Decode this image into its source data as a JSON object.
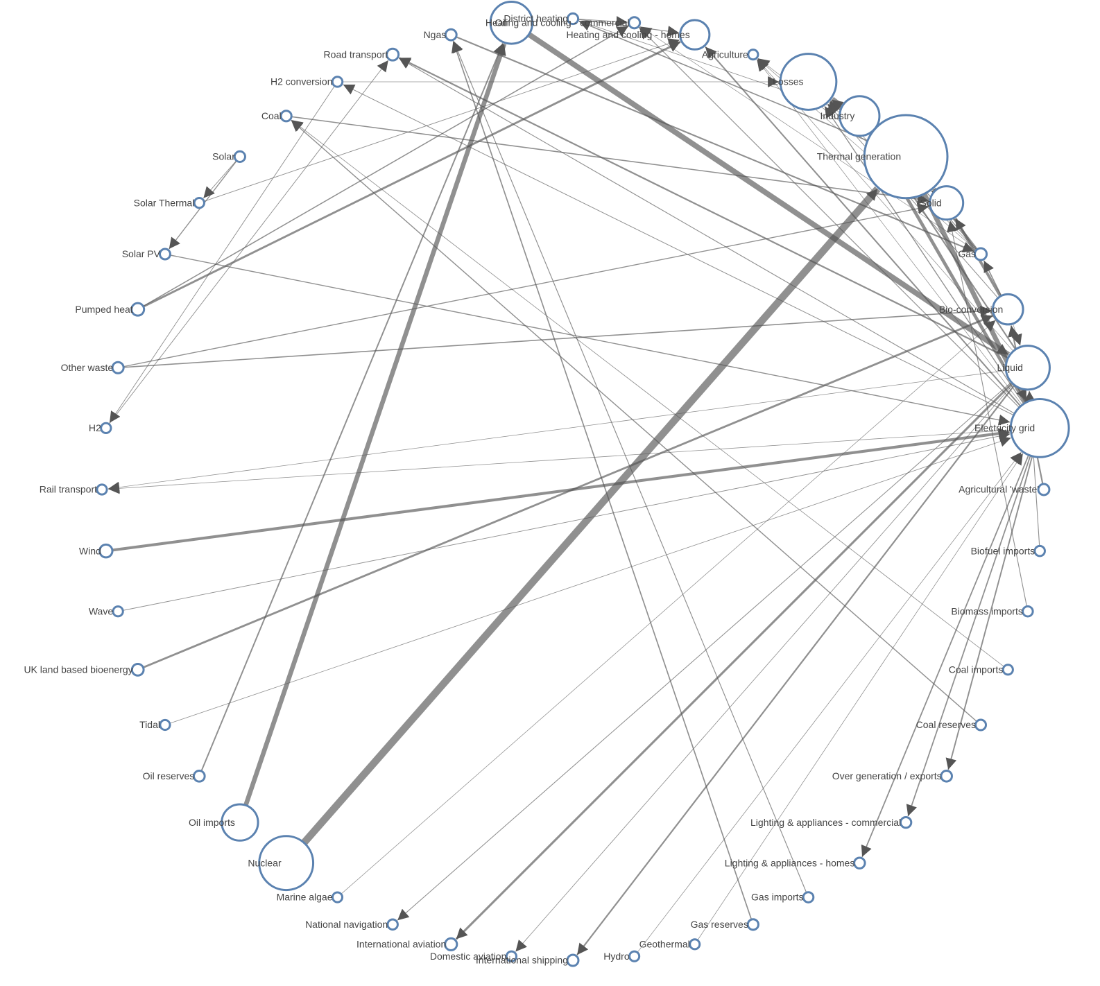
{
  "nodes": [
    {
      "label": "District heating"
    },
    {
      "label": "Heating and cooling - commercial"
    },
    {
      "label": "Heating and cooling - homes"
    },
    {
      "label": "Agriculture"
    },
    {
      "label": "Losses"
    },
    {
      "label": "Industry"
    },
    {
      "label": "Thermal generation"
    },
    {
      "label": "Solid"
    },
    {
      "label": "Gas"
    },
    {
      "label": "Bio-conversion"
    },
    {
      "label": "Liquid"
    },
    {
      "label": "Electricity grid"
    },
    {
      "label": "Agricultural 'waste'"
    },
    {
      "label": "Biofuel imports"
    },
    {
      "label": "Biomass imports"
    },
    {
      "label": "Coal imports"
    },
    {
      "label": "Coal reserves"
    },
    {
      "label": "Over generation / exports"
    },
    {
      "label": "Lighting & appliances - commercial"
    },
    {
      "label": "Lighting & appliances - homes"
    },
    {
      "label": "Gas imports"
    },
    {
      "label": "Gas reserves"
    },
    {
      "label": "Geothermal"
    },
    {
      "label": "Hydro"
    },
    {
      "label": "International shipping"
    },
    {
      "label": "Domestic aviation"
    },
    {
      "label": "International aviation"
    },
    {
      "label": "National navigation"
    },
    {
      "label": "Marine algae"
    },
    {
      "label": "Nuclear"
    },
    {
      "label": "Oil imports"
    },
    {
      "label": "Oil reserves"
    },
    {
      "label": "Tidal"
    },
    {
      "label": "UK land based bioenergy"
    },
    {
      "label": "Wave"
    },
    {
      "label": "Wind"
    },
    {
      "label": "Rail transport"
    },
    {
      "label": "H2"
    },
    {
      "label": "Other waste"
    },
    {
      "label": "Pumped heat"
    },
    {
      "label": "Solar PV"
    },
    {
      "label": "Solar Thermal"
    },
    {
      "label": "Solar"
    },
    {
      "label": "Coal"
    },
    {
      "label": "H2 conversion"
    },
    {
      "label": "Road transport"
    },
    {
      "label": "Ngas"
    },
    {
      "label": "Oil"
    }
  ],
  "links": [
    {
      "source": 12,
      "target": 9,
      "value": 124.729
    },
    {
      "source": 9,
      "target": 10,
      "value": 0.597
    },
    {
      "source": 9,
      "target": 4,
      "value": 26.862
    },
    {
      "source": 9,
      "target": 7,
      "value": 280.322
    },
    {
      "source": 9,
      "target": 8,
      "value": 81.144
    },
    {
      "source": 13,
      "target": 10,
      "value": 35
    },
    {
      "source": 14,
      "target": 7,
      "value": 35
    },
    {
      "source": 15,
      "target": 43,
      "value": 11.606
    },
    {
      "source": 16,
      "target": 43,
      "value": 63.965
    },
    {
      "source": 43,
      "target": 7,
      "value": 75.571
    },
    {
      "source": 0,
      "target": 5,
      "value": 10.639
    },
    {
      "source": 0,
      "target": 1,
      "value": 22.505
    },
    {
      "source": 0,
      "target": 2,
      "value": 46.184
    },
    {
      "source": 11,
      "target": 17,
      "value": 104.453
    },
    {
      "source": 11,
      "target": 2,
      "value": 113.726
    },
    {
      "source": 11,
      "target": 44,
      "value": 27.14
    },
    {
      "source": 11,
      "target": 5,
      "value": 342.165
    },
    {
      "source": 11,
      "target": 45,
      "value": 37.797
    },
    {
      "source": 11,
      "target": 3,
      "value": 4.412
    },
    {
      "source": 11,
      "target": 1,
      "value": 40.858
    },
    {
      "source": 11,
      "target": 4,
      "value": 56.691
    },
    {
      "source": 11,
      "target": 36,
      "value": 7.863
    },
    {
      "source": 11,
      "target": 18,
      "value": 90.008
    },
    {
      "source": 11,
      "target": 19,
      "value": 93.494
    },
    {
      "source": 20,
      "target": 46,
      "value": 40.719
    },
    {
      "source": 21,
      "target": 46,
      "value": 82.233
    },
    {
      "source": 8,
      "target": 1,
      "value": 0.129
    },
    {
      "source": 8,
      "target": 4,
      "value": 1.401
    },
    {
      "source": 8,
      "target": 6,
      "value": 151.891
    },
    {
      "source": 8,
      "target": 3,
      "value": 2.096
    },
    {
      "source": 8,
      "target": 5,
      "value": 48.58
    },
    {
      "source": 22,
      "target": 11,
      "value": 7.013
    },
    {
      "source": 44,
      "target": 37,
      "value": 20.897
    },
    {
      "source": 44,
      "target": 4,
      "value": 6.242
    },
    {
      "source": 37,
      "target": 45,
      "value": 20.897
    },
    {
      "source": 23,
      "target": 11,
      "value": 6.995
    },
    {
      "source": 10,
      "target": 5,
      "value": 121.066
    },
    {
      "source": 10,
      "target": 24,
      "value": 128.69
    },
    {
      "source": 10,
      "target": 45,
      "value": 135.835
    },
    {
      "source": 10,
      "target": 25,
      "value": 14.458
    },
    {
      "source": 10,
      "target": 26,
      "value": 206.267
    },
    {
      "source": 10,
      "target": 3,
      "value": 3.64
    },
    {
      "source": 10,
      "target": 27,
      "value": 33.218
    },
    {
      "source": 10,
      "target": 36,
      "value": 4.413
    },
    {
      "source": 28,
      "target": 9,
      "value": 4.375
    },
    {
      "source": 46,
      "target": 8,
      "value": 122.952
    },
    {
      "source": 29,
      "target": 6,
      "value": 839.978
    },
    {
      "source": 30,
      "target": 47,
      "value": 504.287
    },
    {
      "source": 31,
      "target": 47,
      "value": 107.703
    },
    {
      "source": 47,
      "target": 10,
      "value": 611.99
    },
    {
      "source": 38,
      "target": 7,
      "value": 56.587
    },
    {
      "source": 38,
      "target": 9,
      "value": 77.81
    },
    {
      "source": 39,
      "target": 2,
      "value": 193.026
    },
    {
      "source": 39,
      "target": 1,
      "value": 70.672
    },
    {
      "source": 40,
      "target": 11,
      "value": 59.901
    },
    {
      "source": 41,
      "target": 2,
      "value": 19.263
    },
    {
      "source": 42,
      "target": 41,
      "value": 19.263
    },
    {
      "source": 42,
      "target": 40,
      "value": 59.901
    },
    {
      "source": 7,
      "target": 3,
      "value": 0.882
    },
    {
      "source": 7,
      "target": 6,
      "value": 400.12
    },
    {
      "source": 7,
      "target": 5,
      "value": 46.477
    },
    {
      "source": 6,
      "target": 11,
      "value": 525.531
    },
    {
      "source": 6,
      "target": 4,
      "value": 787.129
    },
    {
      "source": 6,
      "target": 0,
      "value": 79.329
    },
    {
      "source": 32,
      "target": 11,
      "value": 9.452
    },
    {
      "source": 33,
      "target": 9,
      "value": 182.01
    },
    {
      "source": 34,
      "target": 11,
      "value": 19.013
    },
    {
      "source": 35,
      "target": 11,
      "value": 289.366
    }
  ]
}
